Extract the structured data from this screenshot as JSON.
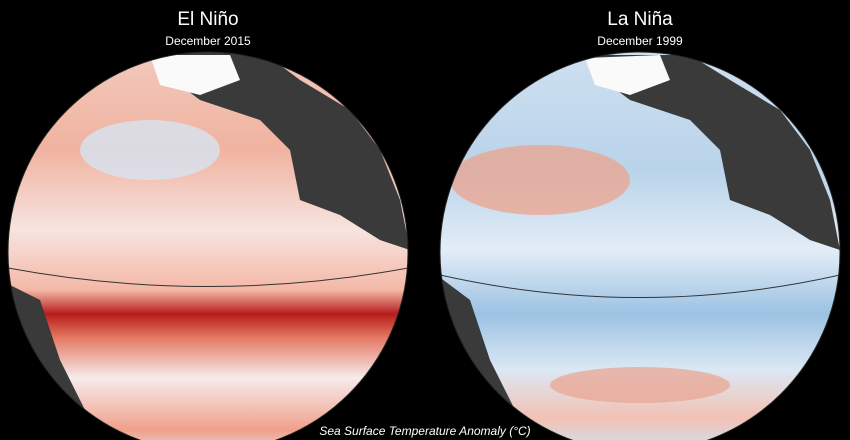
{
  "panels": [
    {
      "title": "El Niño",
      "subtitle": "December 2015"
    },
    {
      "title": "La Niña",
      "subtitle": "December 1999"
    }
  ],
  "caption": "Sea Surface Temperature Anomaly (°C)"
}
